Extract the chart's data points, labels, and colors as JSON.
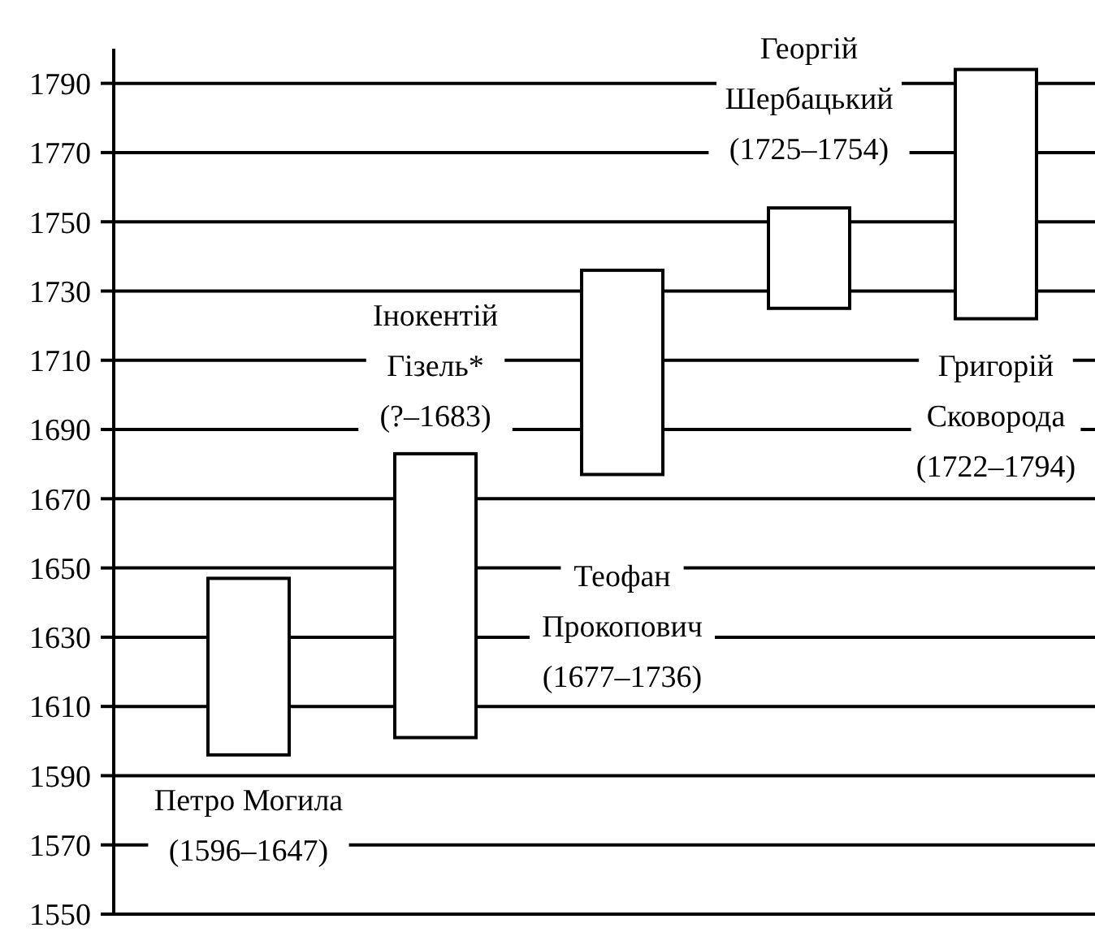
{
  "chart_data": {
    "type": "bar",
    "categories": [
      null,
      null,
      null,
      null,
      null
    ],
    "base": [
      1596,
      1601,
      1677,
      1725,
      1722
    ],
    "values": [
      51,
      82,
      59,
      29,
      72
    ],
    "color": "#ffffff",
    "ylim": [
      1550,
      1800
    ],
    "yticks": [
      1550,
      1570,
      1590,
      1610,
      1630,
      1650,
      1670,
      1690,
      1710,
      1730,
      1750,
      1770,
      1790
    ],
    "grid": "y",
    "annotations": [
      "Петро Могила\n(1596–1647)",
      "Інокентій\nГізель*\n(?–1683)",
      "Теофан\nПрокопович\n(1677–1736)",
      "Георгій\nШербацький\n(1725–1754)",
      "Григорій\nСковорода\n(1722–1794)"
    ]
  }
}
